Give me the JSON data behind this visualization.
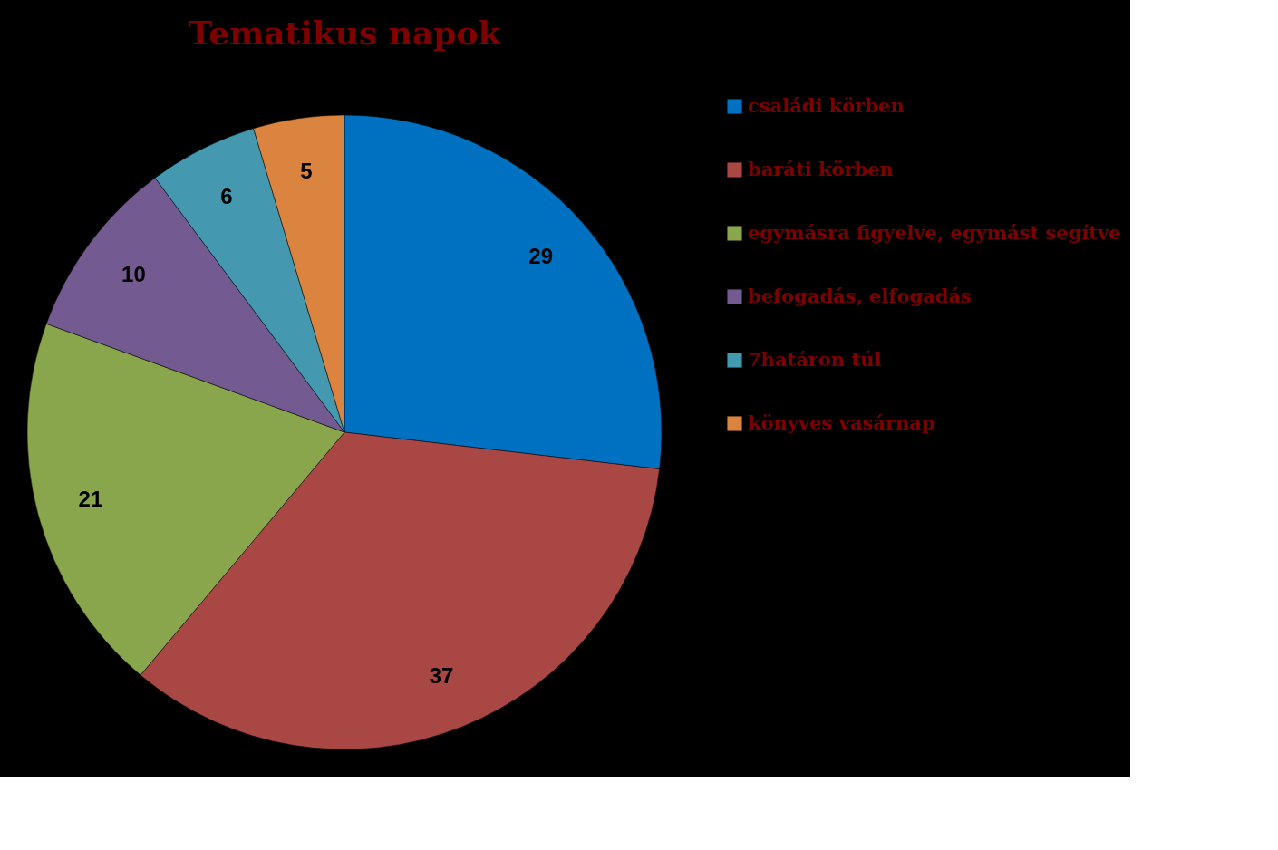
{
  "chart_data": {
    "type": "pie",
    "title": "Tematikus napok",
    "categories": [
      "családi körben",
      "baráti körben",
      "egymásra figyelve, egymást segítve",
      "befogadás, elfogadás",
      "7határon túl",
      "könyves vasárnap"
    ],
    "values": [
      29,
      37,
      21,
      10,
      6,
      5
    ],
    "colors": [
      "#0070c0",
      "#a94744",
      "#8aa64c",
      "#735b91",
      "#4499b0",
      "#db8440"
    ],
    "data_labels": true,
    "legend": "right"
  }
}
